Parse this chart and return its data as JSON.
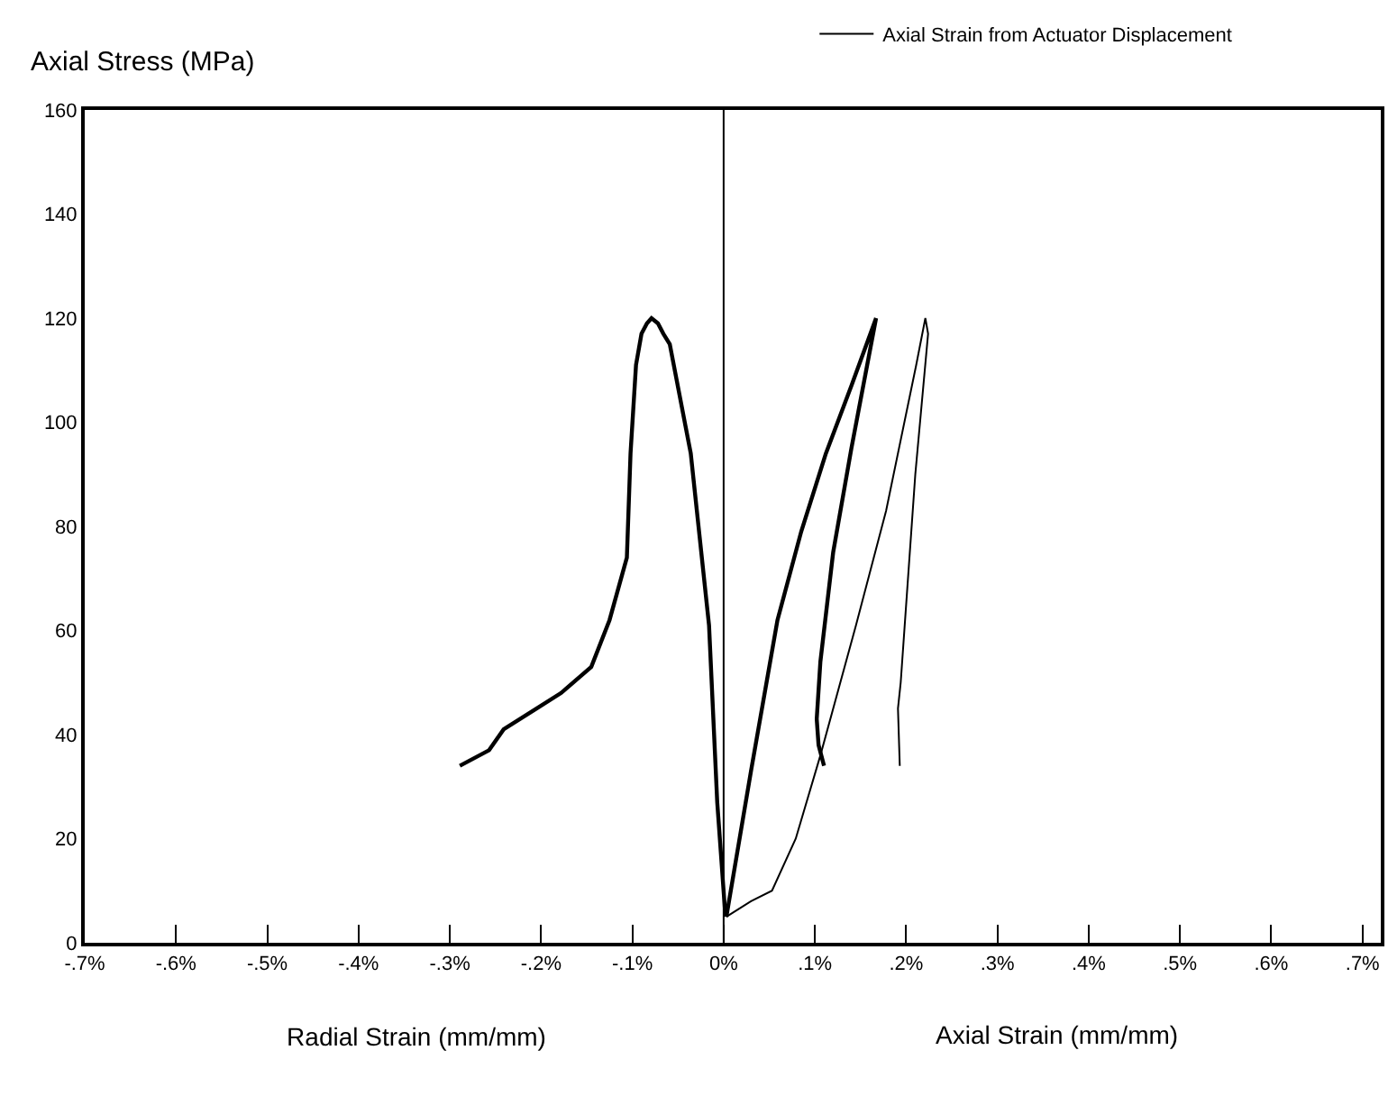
{
  "chart_data": {
    "type": "line",
    "xlabel": "Radial Strain (mm/mm)",
    "ylabel": "Axial Stress (MPa)",
    "annotations": [
      "Axial Strain (mm/mm)"
    ],
    "series": [
      {
        "color": "#000000",
        "x": [
          -0.289,
          -0.257,
          -0.241,
          -0.205,
          -0.178,
          -0.145,
          -0.125,
          -0.106,
          -0.102,
          -0.096,
          -0.09,
          -0.084,
          -0.079,
          -0.072,
          -0.066,
          -0.059,
          -0.036,
          -0.016,
          -0.007,
          0.002
        ],
        "values": [
          34,
          37,
          41,
          45,
          48,
          53,
          62,
          74,
          94,
          111,
          117,
          119,
          120,
          119,
          117,
          115,
          94,
          61,
          27,
          5
        ]
      },
      {
        "color": "#000000",
        "x": [
          0.003,
          0.03,
          0.059,
          0.085,
          0.112,
          0.14,
          0.167,
          0.14,
          0.12,
          0.106,
          0.102,
          0.104,
          0.11
        ],
        "values": [
          5,
          33,
          62,
          79,
          94,
          107,
          120,
          95,
          75,
          54,
          43,
          38,
          34
        ]
      },
      {
        "name": "Axial Strain from Actuator Displacement",
        "color": "#000000",
        "x": [
          0.003,
          0.03,
          0.053,
          0.079,
          0.106,
          0.145,
          0.178,
          0.211,
          0.221,
          0.224,
          0.21,
          0.2,
          0.194,
          0.191,
          0.193
        ],
        "values": [
          5,
          8,
          10,
          20,
          36,
          61,
          83,
          111,
          120,
          117,
          90,
          65,
          50,
          45,
          34
        ]
      }
    ],
    "xlim": [
      -0.7,
      0.72
    ],
    "xticks": [
      {
        "value": -0.7,
        "label": "-.7%"
      },
      {
        "value": -0.6,
        "label": "-.6%"
      },
      {
        "value": -0.5,
        "label": "-.5%"
      },
      {
        "value": -0.4,
        "label": "-.4%"
      },
      {
        "value": -0.3,
        "label": "-.3%"
      },
      {
        "value": -0.2,
        "label": "-.2%"
      },
      {
        "value": -0.1,
        "label": "-.1%"
      },
      {
        "value": 0,
        "label": "0%"
      },
      {
        "value": 0.1,
        "label": ".1%"
      },
      {
        "value": 0.2,
        "label": ".2%"
      },
      {
        "value": 0.3,
        "label": ".3%"
      },
      {
        "value": 0.4,
        "label": ".4%"
      },
      {
        "value": 0.5,
        "label": ".5%"
      },
      {
        "value": 0.6,
        "label": ".6%"
      },
      {
        "value": 0.7,
        "label": ".7%"
      }
    ],
    "ylim": [
      0,
      160
    ],
    "yticks": [
      0,
      20,
      40,
      60,
      80,
      100,
      120,
      140,
      160
    ],
    "ref_lines": [
      {
        "axis": "x",
        "value": 0,
        "color": "#000000"
      }
    ],
    "grid": false,
    "legend": "top right",
    "marker": "none",
    "line_style": "solid"
  }
}
